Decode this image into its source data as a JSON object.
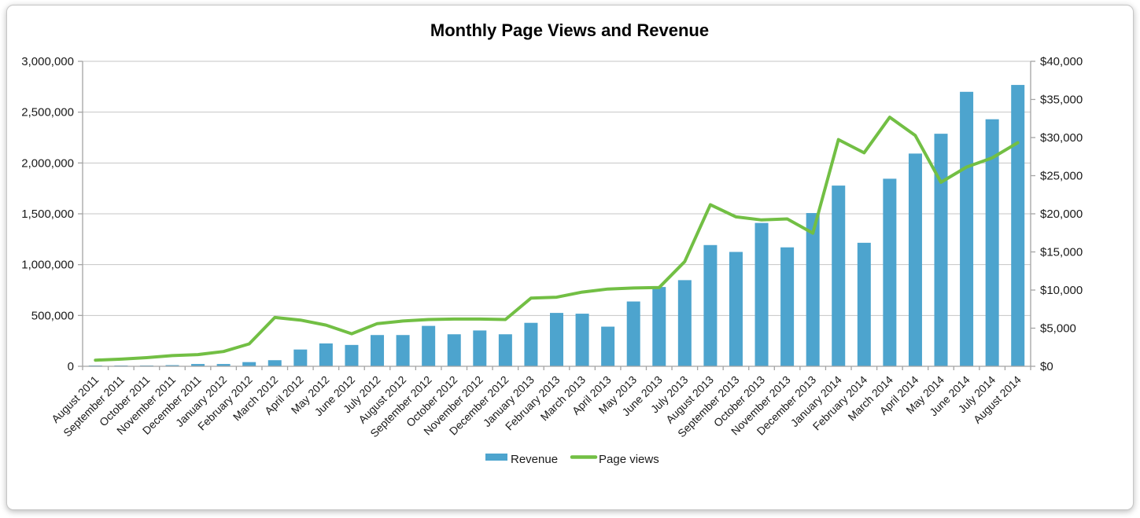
{
  "title": "Monthly Page Views and Revenue",
  "legend": {
    "revenue_label": "Revenue",
    "page_views_label": "Page views"
  },
  "colors": {
    "bar": "#4da4ce",
    "line": "#72bf44",
    "grid": "#c4c4c4",
    "axis": "#a3a3a3",
    "text": "#1a1a1a"
  },
  "chart_data": {
    "type": "bar",
    "subtype": "combo-bar-line",
    "title": "Monthly Page Views and Revenue",
    "grid": "horizontal",
    "legend_position": "bottom",
    "categories": [
      "August 2011",
      "September 2011",
      "October 2011",
      "November 2011",
      "December 2011",
      "January 2012",
      "February 2012",
      "March 2012",
      "April 2012",
      "May 2012",
      "June 2012",
      "July 2012",
      "August 2012",
      "September 2012",
      "October 2012",
      "November 2012",
      "December 2012",
      "January 2013",
      "February 2013",
      "March 2013",
      "April 2013",
      "May 2013",
      "June 2013",
      "July 2013",
      "August 2013",
      "September 2013",
      "October 2013",
      "November 2013",
      "December 2013",
      "January 2014",
      "February 2014",
      "March 2014",
      "April 2014",
      "May 2014",
      "June 2014",
      "July 2014",
      "August 2014"
    ],
    "series": [
      {
        "name": "Revenue",
        "type": "bar",
        "axis": "right",
        "color": "#4da4ce",
        "values": [
          100,
          80,
          100,
          150,
          300,
          300,
          550,
          800,
          2200,
          3000,
          2800,
          4100,
          4100,
          5300,
          4200,
          4700,
          4200,
          5700,
          7000,
          6900,
          5200,
          8500,
          10400,
          11300,
          15900,
          15000,
          18800,
          15600,
          20100,
          23700,
          16200,
          24600,
          27900,
          30500,
          36000,
          32400,
          36900
        ]
      },
      {
        "name": "Page views",
        "type": "line",
        "axis": "left",
        "color": "#72bf44",
        "values": [
          60000,
          70000,
          85000,
          105000,
          115000,
          145000,
          220000,
          480000,
          455000,
          405000,
          320000,
          420000,
          445000,
          460000,
          465000,
          465000,
          460000,
          670000,
          680000,
          730000,
          760000,
          770000,
          775000,
          1030000,
          1590000,
          1470000,
          1440000,
          1450000,
          1310000,
          2230000,
          2100000,
          2450000,
          2270000,
          1810000,
          1960000,
          2050000,
          2200000
        ]
      }
    ],
    "left_axis": {
      "label": "",
      "min": 0,
      "max": 3000000,
      "step": 500000,
      "tick_labels": [
        "0",
        "500,000",
        "1,000,000",
        "1,500,000",
        "2,000,000",
        "2,500,000",
        "3,000,000"
      ]
    },
    "right_axis": {
      "label": "",
      "min": 0,
      "max": 40000,
      "step": 5000,
      "tick_labels": [
        "$0",
        "$5,000",
        "$10,000",
        "$15,000",
        "$20,000",
        "$25,000",
        "$30,000",
        "$35,000",
        "$40,000"
      ]
    }
  }
}
